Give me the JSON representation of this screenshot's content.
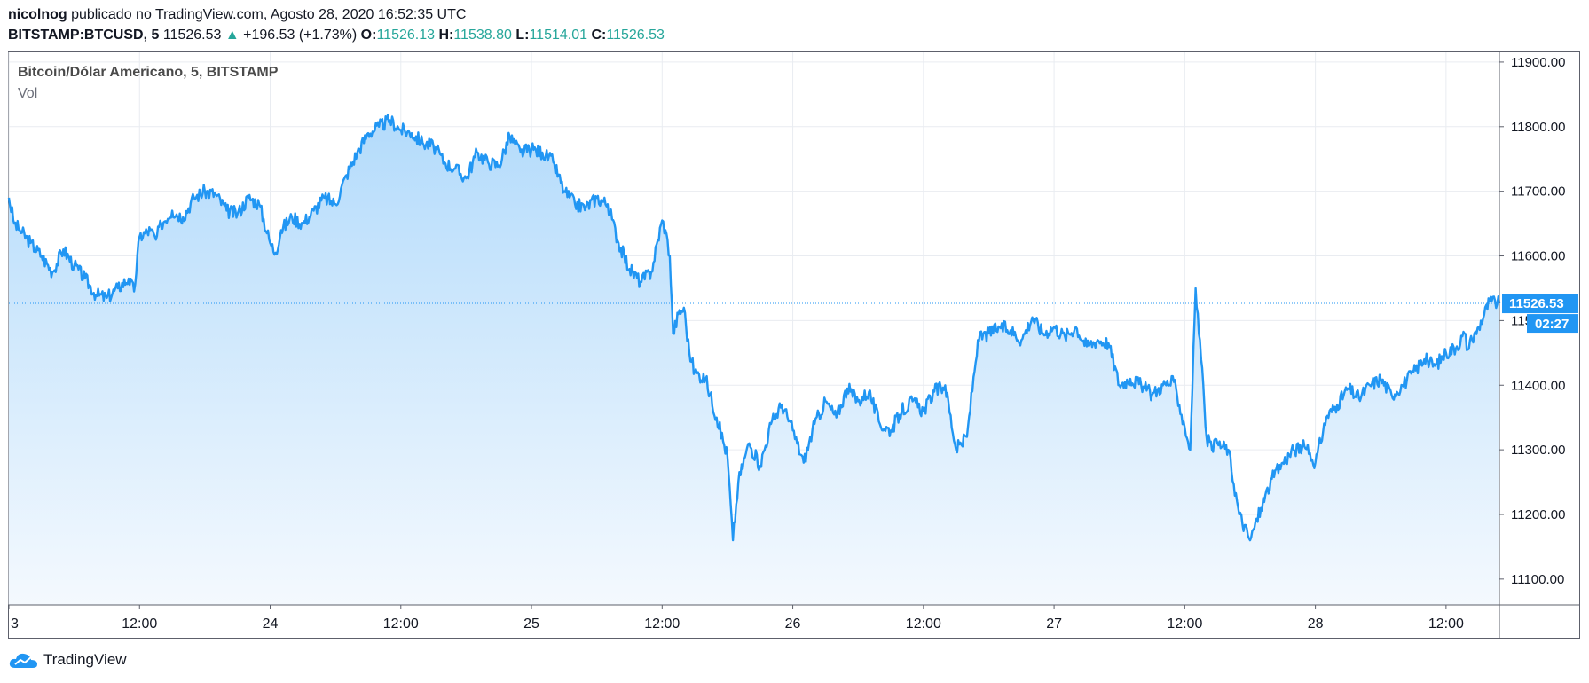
{
  "header": {
    "author": "nicolnog",
    "published": " publicado no TradingView.com, Agosto 28, 2020 16:52:35 UTC"
  },
  "ohlc": {
    "symbol": "BITSTAMP:BTCUSD, 5",
    "last": "11526.53",
    "change": "+196.53 (+1.73%)",
    "o_label": "O:",
    "o": "11526.13",
    "h_label": "H:",
    "h": "11538.80",
    "l_label": "L:",
    "l": "11514.01",
    "c_label": "C:",
    "c": "11526.53"
  },
  "legend": {
    "title": "Bitcoin/Dólar Americano, 5, BITSTAMP",
    "vol": "Vol"
  },
  "footer": {
    "brand": "TradingView"
  },
  "colors": {
    "line": "#2196f3",
    "area_top": "#b3dbfb",
    "area_bottom": "#f4f9fe",
    "vol_up": "#26a69a",
    "vol_down": "#ef5350",
    "grid": "#e9ecf1",
    "price_tag": "#2196f3"
  },
  "chart_data": {
    "type": "area",
    "price_label": "11526.53",
    "countdown_label": "02:27",
    "last_price": 11526.53,
    "ylim": [
      11060,
      11915
    ],
    "y_ticks": [
      "11900.00",
      "11800.00",
      "11700.00",
      "11600.00",
      "11500.00",
      "11400.00",
      "11300.00",
      "11200.00",
      "11100.00"
    ],
    "y_tick_values": [
      11900,
      11800,
      11700,
      11600,
      11500,
      11400,
      11300,
      11200,
      11100
    ],
    "x_ticks": [
      "3",
      "12:00",
      "24",
      "12:00",
      "25",
      "12:00",
      "26",
      "12:00",
      "27",
      "12:00",
      "28",
      "12:00"
    ],
    "x_tick_hours": [
      0,
      12,
      24,
      36,
      48,
      60,
      72,
      84,
      96,
      108,
      120,
      132
    ],
    "xlim_hours": [
      0,
      136.9
    ],
    "series": [
      {
        "hours": [
          0,
          0.5,
          1,
          2,
          3,
          4,
          5,
          6,
          7,
          8,
          9,
          10,
          11,
          11.5,
          12,
          13,
          13.5,
          14,
          15,
          16,
          17,
          18,
          19,
          20,
          21,
          22,
          23,
          24,
          24.5,
          25,
          26,
          27,
          28,
          29,
          30,
          31,
          32,
          33,
          34,
          35,
          36,
          37,
          38,
          39,
          40,
          41,
          42,
          43,
          44,
          45,
          46,
          47,
          48,
          49,
          50,
          51,
          52,
          53,
          54,
          55,
          56,
          57,
          58,
          59,
          60,
          60.3,
          60.7,
          61,
          61.5,
          62,
          62.5,
          63,
          64,
          65,
          66,
          66.5,
          67,
          67.7,
          68,
          69,
          70,
          71,
          72,
          73,
          74,
          75,
          76,
          77,
          78,
          79,
          80,
          81,
          82,
          83,
          84,
          85,
          86,
          87,
          88,
          89,
          90,
          91,
          92,
          93,
          94,
          95,
          96,
          97,
          98,
          99,
          100,
          101,
          102,
          103,
          104,
          105,
          106,
          107,
          107.5,
          108,
          108.5,
          109,
          109.5,
          110,
          110.5,
          111,
          112,
          113,
          114,
          115,
          116,
          117,
          118,
          119,
          120,
          121,
          122,
          123,
          124,
          125,
          126,
          127,
          128,
          129,
          130,
          131,
          132,
          133,
          133.7,
          134,
          135,
          136,
          136.9
        ],
        "values": [
          11690,
          11650,
          11640,
          11620,
          11600,
          11575,
          11610,
          11585,
          11565,
          11540,
          11535,
          11550,
          11565,
          11545,
          11630,
          11640,
          11625,
          11650,
          11670,
          11660,
          11690,
          11700,
          11695,
          11670,
          11665,
          11690,
          11680,
          11620,
          11605,
          11640,
          11660,
          11650,
          11670,
          11690,
          11680,
          11725,
          11760,
          11790,
          11800,
          11810,
          11795,
          11790,
          11775,
          11770,
          11745,
          11735,
          11720,
          11760,
          11745,
          11740,
          11785,
          11760,
          11765,
          11760,
          11745,
          11700,
          11680,
          11675,
          11690,
          11680,
          11620,
          11580,
          11560,
          11575,
          11655,
          11640,
          11600,
          11480,
          11510,
          11520,
          11450,
          11420,
          11410,
          11350,
          11290,
          11160,
          11250,
          11295,
          11310,
          11275,
          11340,
          11370,
          11330,
          11280,
          11340,
          11375,
          11350,
          11395,
          11375,
          11390,
          11340,
          11330,
          11360,
          11375,
          11360,
          11390,
          11400,
          11300,
          11320,
          11470,
          11480,
          11490,
          11485,
          11470,
          11505,
          11480,
          11490,
          11475,
          11490,
          11460,
          11470,
          11465,
          11400,
          11410,
          11400,
          11385,
          11400,
          11405,
          11370,
          11335,
          11300,
          11550,
          11440,
          11320,
          11300,
          11310,
          11300,
          11200,
          11160,
          11210,
          11255,
          11280,
          11300,
          11305,
          11280,
          11350,
          11370,
          11395,
          11380,
          11400,
          11410,
          11385,
          11400,
          11420,
          11440,
          11430,
          11450,
          11460,
          11480,
          11455,
          11490,
          11530,
          11526.53
        ]
      }
    ]
  }
}
